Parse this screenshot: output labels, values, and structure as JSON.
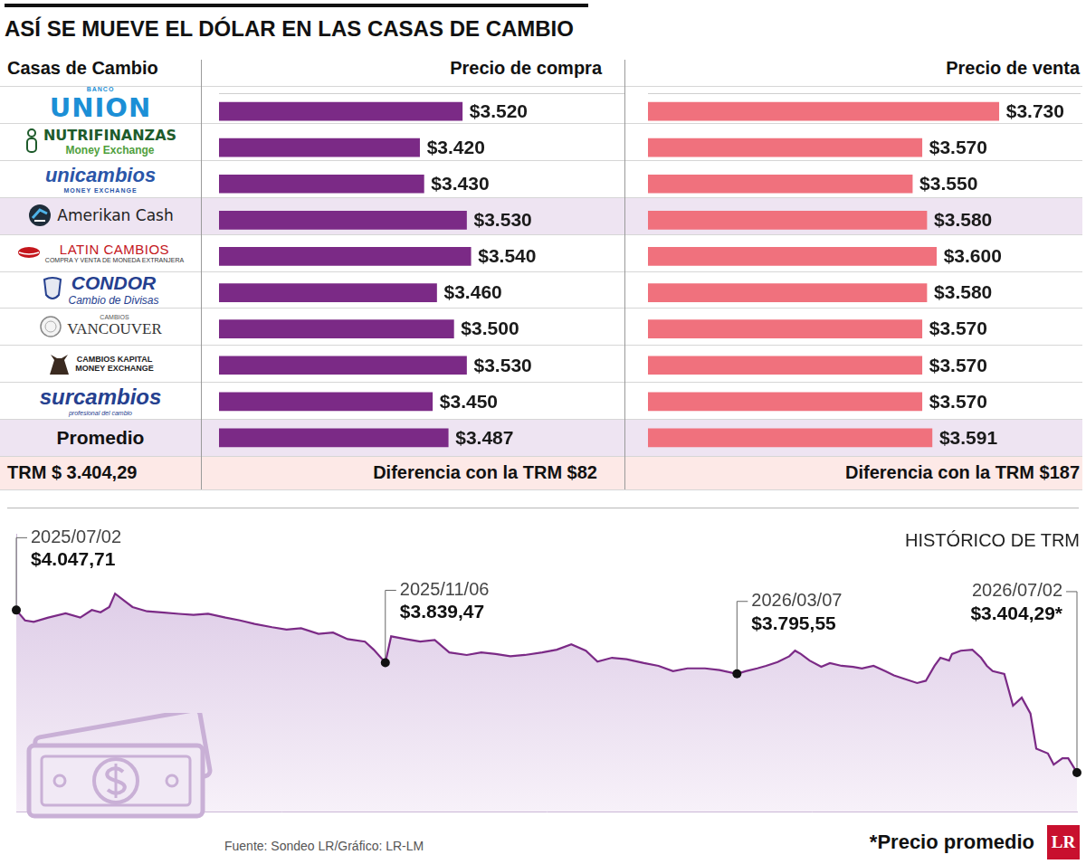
{
  "title": "ASÍ SE MUEVE EL DÓLAR EN LAS CASAS DE CAMBIO",
  "row_head": "Casas de Cambio",
  "logo_top": [
    "BANCO",
    null,
    null,
    null,
    null,
    null,
    "CAMBIOS",
    null,
    null,
    null
  ],
  "logo_bottom": [
    null,
    "Money Exchange",
    "MONEY EXCHANGE",
    null,
    "COMPRA Y VENTA DE MONEDA EXTRANJERA",
    "Cambio de Divisas",
    null,
    "MONEY EXCHANGE",
    "profesional del cambio",
    null
  ],
  "trm_row": [
    "TRM $ 3.404,29",
    "Diferencia con la TRM $82",
    "Diferencia con la TRM $187"
  ],
  "source": "Fuente: Sondeo LR/Gráfico: LR-LM",
  "footnote": "*Precio promedio",
  "logo": "LR",
  "chart_data": [
    {
      "type": "bar",
      "orientation": "horizontal",
      "title": "Precio de compra",
      "categories": [
        "UNION",
        "NUTRIFINANZAS",
        "unicambios",
        "Amerikan Cash",
        "LATIN CAMBIOS",
        "CONDOR",
        "VANCOUVER",
        "CAMBIOS KAPITAL",
        "surcambios",
        "Promedio"
      ],
      "values": [
        3520,
        3420,
        3430,
        3530,
        3540,
        3460,
        3500,
        3530,
        3450,
        3487
      ],
      "value_labels": [
        "$3.520",
        "$3.420",
        "$3.430",
        "$3.530",
        "$3.540",
        "$3.460",
        "$3.500",
        "$3.530",
        "$3.450",
        "$3.487"
      ],
      "color": "#7b2a86",
      "xlim": [
        2950,
        3900
      ],
      "data_labels": true,
      "grid": false,
      "tick_labels": "y"
    },
    {
      "type": "bar",
      "orientation": "horizontal",
      "title": "Precio de venta",
      "categories": [
        "UNION",
        "NUTRIFINANZAS",
        "unicambios",
        "Amerikan Cash",
        "LATIN CAMBIOS",
        "CONDOR",
        "VANCOUVER",
        "CAMBIOS KAPITAL",
        "surcambios",
        "Promedio"
      ],
      "values": [
        3730,
        3570,
        3550,
        3580,
        3600,
        3580,
        3570,
        3570,
        3570,
        3591
      ],
      "value_labels": [
        "$3.730",
        "$3.570",
        "$3.550",
        "$3.580",
        "$3.600",
        "$3.580",
        "$3.570",
        "$3.570",
        "$3.570",
        "$3.591"
      ],
      "color": "#f0717d",
      "xlim": [
        3000,
        3900
      ],
      "data_labels": true,
      "grid": false,
      "tick_labels": false
    },
    {
      "type": "line",
      "title": "HISTÓRICO DE TRM",
      "x": [
        "2025/07/02",
        "2025/07/05",
        "2025/07/08",
        "2025/07/13",
        "2025/07/19",
        "2025/07/24",
        "2025/07/28",
        "2025/07/31",
        "2025/08/03",
        "2025/08/05",
        "2025/08/08",
        "2025/08/11",
        "2025/08/16",
        "2025/08/21",
        "2025/08/27",
        "2025/09/01",
        "2025/09/06",
        "2025/09/12",
        "2025/09/17",
        "2025/09/22",
        "2025/09/28",
        "2025/10/03",
        "2025/10/08",
        "2025/10/14",
        "2025/10/19",
        "2025/10/24",
        "2025/10/30",
        "2025/11/02",
        "2025/11/06",
        "2025/11/08",
        "2025/11/13",
        "2025/11/18",
        "2025/11/23",
        "2025/11/28",
        "2025/12/04",
        "2025/12/09",
        "2025/12/14",
        "2025/12/19",
        "2025/12/24",
        "2025/12/30",
        "2026/01/04",
        "2026/01/09",
        "2026/01/14",
        "2026/01/18",
        "2026/01/23",
        "2026/01/28",
        "2026/02/03",
        "2026/02/08",
        "2026/02/13",
        "2026/02/18",
        "2026/02/24",
        "2026/03/01",
        "2026/03/07",
        "2026/03/10",
        "2026/03/14",
        "2026/03/17",
        "2026/03/21",
        "2026/03/25",
        "2026/03/27",
        "2026/03/29",
        "2026/04/01",
        "2026/04/05",
        "2026/04/08",
        "2026/04/12",
        "2026/04/16",
        "2026/04/19",
        "2026/04/23",
        "2026/04/27",
        "2026/04/30",
        "2026/05/04",
        "2026/05/08",
        "2026/05/11",
        "2026/05/14",
        "2026/05/16",
        "2026/05/19",
        "2026/05/20",
        "2026/05/23",
        "2026/05/27",
        "2026/05/30",
        "2026/06/01",
        "2026/06/03",
        "2026/06/07",
        "2026/06/10",
        "2026/06/13",
        "2026/06/16",
        "2026/06/18",
        "2026/06/22",
        "2026/06/24",
        "2026/06/27",
        "2026/06/29",
        "2026/07/02"
      ],
      "values": [
        4047.71,
        4007,
        4001,
        4018,
        4035,
        4018,
        4048,
        4039,
        4060,
        4113,
        4086,
        4060,
        4043,
        4039,
        4033,
        4029,
        4033,
        4018,
        4007,
        3993,
        3980,
        3971,
        3976,
        3954,
        3959,
        3933,
        3923,
        3891,
        3839.47,
        3944,
        3933,
        3923,
        3929,
        3880,
        3870,
        3880,
        3874,
        3865,
        3870,
        3880,
        3891,
        3912,
        3887,
        3844,
        3859,
        3853,
        3838,
        3827,
        3806,
        3817,
        3817,
        3810,
        3795.55,
        3806,
        3817,
        3827,
        3842,
        3865,
        3887,
        3874,
        3848,
        3823,
        3838,
        3827,
        3823,
        3817,
        3827,
        3806,
        3789,
        3774,
        3759,
        3768,
        3827,
        3859,
        3848,
        3874,
        3887,
        3891,
        3859,
        3827,
        3806,
        3795,
        3669,
        3701,
        3638,
        3499,
        3480,
        3436,
        3461,
        3461,
        3404.29
      ],
      "color": "#7b2a86",
      "xlim": [
        "2025/07/02",
        "2026/07/02"
      ],
      "ylim": [
        3250,
        4350
      ],
      "grid": false,
      "tick_labels": false,
      "annotations": [
        {
          "x": "2025/07/02",
          "y": 4047.71,
          "label": "$4.047,71"
        },
        {
          "x": "2025/11/06",
          "y": 3839.47,
          "label": "$3.839,47"
        },
        {
          "x": "2026/03/07",
          "y": 3795.55,
          "label": "$3.795,55"
        },
        {
          "x": "2026/07/02",
          "y": 3404.29,
          "label": "$3.404,29*"
        }
      ]
    }
  ]
}
